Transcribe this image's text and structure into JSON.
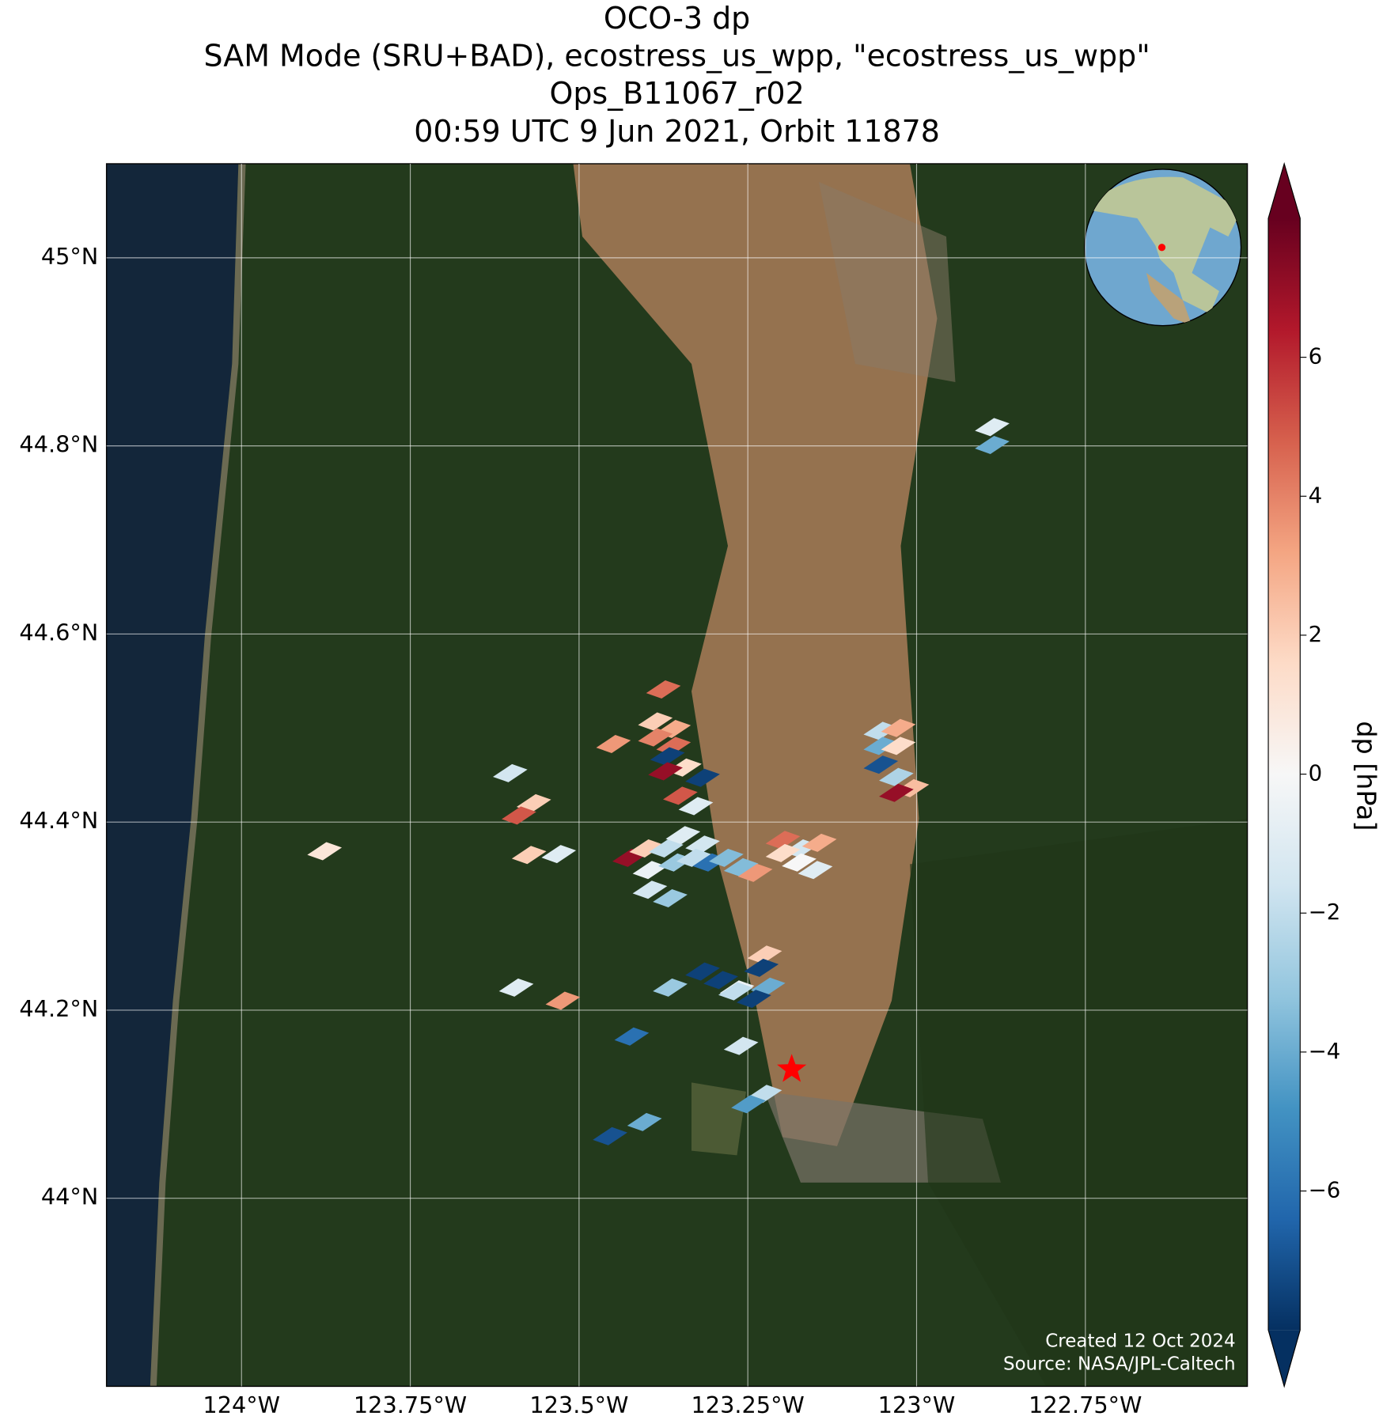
{
  "chart_data": {
    "type": "map",
    "title": [
      "OCO-3 dp",
      "SAM Mode (SRU+BAD), ecostress_us_wpp, \"ecostress_us_wpp\"",
      "Ops_B11067_r02",
      "00:59 UTC 9 Jun 2021, Orbit 11878"
    ],
    "xlim": [
      -124.2,
      -122.51
    ],
    "ylim": [
      43.8,
      45.1
    ],
    "xticks": [
      {
        "value": -124,
        "label": "124°W"
      },
      {
        "value": -123.75,
        "label": "123.75°W"
      },
      {
        "value": -123.5,
        "label": "123.5°W"
      },
      {
        "value": -123.25,
        "label": "123.25°W"
      },
      {
        "value": -123,
        "label": "123°W"
      },
      {
        "value": -122.75,
        "label": "122.75°W"
      }
    ],
    "yticks": [
      {
        "value": 44,
        "label": "44°N"
      },
      {
        "value": 44.2,
        "label": "44.2°N"
      },
      {
        "value": 44.4,
        "label": "44.4°N"
      },
      {
        "value": 44.6,
        "label": "44.6°N"
      },
      {
        "value": 44.8,
        "label": "44.8°N"
      },
      {
        "value": 45,
        "label": "45°N"
      }
    ],
    "grid": true,
    "colormap": "RdBu_r",
    "clim": [
      -8,
      8
    ],
    "cticks": [
      {
        "value": -6,
        "label": "−6"
      },
      {
        "value": -4,
        "label": "−4"
      },
      {
        "value": -2,
        "label": "−2"
      },
      0,
      2,
      4,
      6
    ],
    "colorbar_label": "dp [hPa]",
    "target": [
      -123.185,
      44.137
    ],
    "lon": [
      -122.888,
      -122.888,
      -123.375,
      -123.387,
      -123.36,
      -123.387,
      -123.36,
      -123.449,
      -123.369,
      -123.344,
      -123.372,
      -123.317,
      -123.35,
      -123.327,
      -123.602,
      -123.567,
      -123.589,
      -123.877,
      -123.574,
      -123.53,
      -123.053,
      -123.027,
      -123.053,
      -123.027,
      -123.053,
      -123.03,
      -123.007,
      -123.03,
      -123.198,
      -123.171,
      -123.144,
      -123.198,
      -123.174,
      -123.15,
      -123.425,
      -123.4,
      -123.395,
      -123.371,
      -123.346,
      -123.317,
      -123.357,
      -123.33,
      -123.306,
      -123.282,
      -123.26,
      -123.239,
      -123.395,
      -123.365,
      -123.225,
      -123.23,
      -123.317,
      -123.29,
      -123.266,
      -123.22,
      -123.241,
      -123.268,
      -123.593,
      -123.524,
      -123.365,
      -123.422,
      -123.26,
      -123.225,
      -123.249,
      -123.403,
      -123.454
    ],
    "lat": [
      44.82,
      44.801,
      44.541,
      44.507,
      44.499,
      44.49,
      44.481,
      44.483,
      44.47,
      44.458,
      44.454,
      44.447,
      44.428,
      44.417,
      44.452,
      44.42,
      44.407,
      44.369,
      44.365,
      44.366,
      44.497,
      44.5,
      44.481,
      44.481,
      44.461,
      44.448,
      44.436,
      44.431,
      44.381,
      44.372,
      44.378,
      44.367,
      44.357,
      44.349,
      44.362,
      44.372,
      44.349,
      44.372,
      44.386,
      44.376,
      44.357,
      44.362,
      44.357,
      44.362,
      44.352,
      44.346,
      44.328,
      44.319,
      44.259,
      44.245,
      44.241,
      44.232,
      44.222,
      44.225,
      44.212,
      44.22,
      44.224,
      44.21,
      44.224,
      44.172,
      44.162,
      44.111,
      44.1,
      44.081,
      44.066
    ],
    "values": [
      -1,
      -4,
      4.5,
      2,
      3,
      4,
      4.5,
      3.5,
      -7.5,
      1.5,
      7,
      -7.5,
      5,
      -1,
      -1.5,
      2,
      5,
      1,
      2,
      -1,
      -2,
      3,
      -4,
      1.5,
      -7,
      -2.5,
      2.5,
      7,
      4.5,
      -1.5,
      3,
      1.5,
      0,
      -1,
      7,
      2,
      -0.5,
      -2,
      -1,
      -1.5,
      -3,
      -2,
      -6,
      -3.5,
      -3.5,
      3.5,
      -1.5,
      -3,
      2,
      -7.5,
      -7.5,
      -7.5,
      -0.5,
      -4,
      -7.5,
      -2,
      -1,
      3.5,
      -3,
      -6,
      -1.5,
      -2,
      -4.5,
      -4,
      -7
    ],
    "credits": [
      "Created 12 Oct 2024",
      "Source: NASA/JPL-Caltech"
    ]
  }
}
